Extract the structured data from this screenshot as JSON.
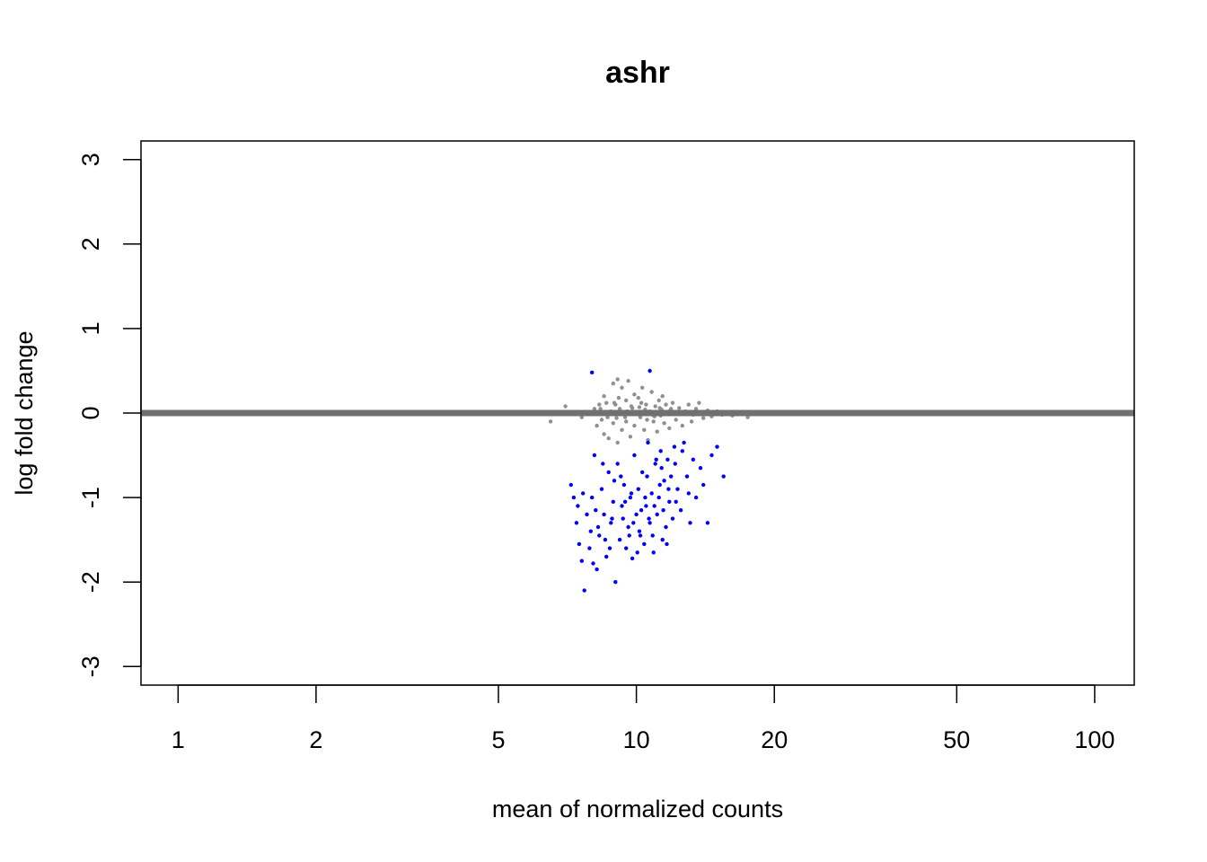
{
  "chart_data": {
    "type": "scatter",
    "title": "ashr",
    "xlabel": "mean of normalized counts",
    "ylabel": "log fold change",
    "x_scale": "log",
    "xlim": [
      0.83,
      122
    ],
    "ylim": [
      -3.22,
      3.22
    ],
    "x_ticks": [
      1,
      2,
      5,
      10,
      20,
      50,
      100
    ],
    "x_tick_labels": [
      "1",
      "2",
      "5",
      "10",
      "20",
      "50",
      "100"
    ],
    "y_ticks": [
      -3,
      -2,
      -1,
      0,
      1,
      2,
      3
    ],
    "y_tick_labels": [
      "-3",
      "-2",
      "-1",
      "0",
      "1",
      "2",
      "3"
    ],
    "grid": false,
    "colors": {
      "not_significant": "#909090",
      "significant": "#0000ff",
      "zero_line": "#707070"
    },
    "reference_line": {
      "y": 0
    },
    "series": [
      {
        "color": "#909090",
        "points": [
          [
            6.5,
            -0.1
          ],
          [
            7.0,
            0.08
          ],
          [
            7.6,
            -0.05
          ],
          [
            8.0,
            0.0
          ],
          [
            8.1,
            0.05
          ],
          [
            8.2,
            -0.15
          ],
          [
            8.3,
            0.1
          ],
          [
            8.4,
            -0.08
          ],
          [
            8.5,
            0.2
          ],
          [
            8.5,
            -0.25
          ],
          [
            8.6,
            0.12
          ],
          [
            8.7,
            -0.3
          ],
          [
            8.8,
            0.02
          ],
          [
            8.9,
            0.35
          ],
          [
            8.9,
            -0.12
          ],
          [
            9.0,
            0.1
          ],
          [
            9.1,
            0.4
          ],
          [
            9.1,
            -0.35
          ],
          [
            9.2,
            0.05
          ],
          [
            9.3,
            -0.2
          ],
          [
            9.3,
            0.3
          ],
          [
            9.4,
            0.0
          ],
          [
            9.5,
            0.15
          ],
          [
            9.5,
            -0.1
          ],
          [
            9.6,
            0.38
          ],
          [
            9.7,
            -0.28
          ],
          [
            9.8,
            0.06
          ],
          [
            9.9,
            0.22
          ],
          [
            9.9,
            -0.15
          ],
          [
            10.0,
            0.0
          ],
          [
            10.1,
            0.18
          ],
          [
            10.2,
            -0.05
          ],
          [
            10.3,
            0.3
          ],
          [
            10.4,
            -0.2
          ],
          [
            10.5,
            0.1
          ],
          [
            10.6,
            -0.32
          ],
          [
            10.7,
            0.02
          ],
          [
            10.8,
            0.25
          ],
          [
            10.9,
            -0.1
          ],
          [
            11.0,
            0.08
          ],
          [
            11.1,
            -0.22
          ],
          [
            11.2,
            0.15
          ],
          [
            11.3,
            -0.03
          ],
          [
            11.4,
            0.2
          ],
          [
            11.5,
            -0.12
          ],
          [
            11.6,
            0.1
          ],
          [
            11.7,
            0.0
          ],
          [
            11.8,
            -0.18
          ],
          [
            11.9,
            0.05
          ],
          [
            12.0,
            0.12
          ],
          [
            12.2,
            -0.08
          ],
          [
            12.4,
            0.06
          ],
          [
            12.6,
            -0.15
          ],
          [
            12.8,
            0.02
          ],
          [
            13.0,
            0.1
          ],
          [
            13.2,
            -0.1
          ],
          [
            13.5,
            0.05
          ],
          [
            13.7,
            0.12
          ],
          [
            14.0,
            -0.06
          ],
          [
            14.3,
            0.03
          ],
          [
            14.6,
            -0.04
          ],
          [
            15.0,
            0.02
          ],
          [
            15.4,
            -0.02
          ],
          [
            15.8,
            0.01
          ],
          [
            16.2,
            -0.03
          ],
          [
            16.8,
            -0.01
          ],
          [
            17.5,
            -0.05
          ],
          [
            8.95,
            0.12
          ],
          [
            9.15,
            0.18
          ],
          [
            9.45,
            -0.05
          ],
          [
            9.75,
            0.08
          ],
          [
            10.25,
            0.12
          ],
          [
            10.55,
            -0.08
          ],
          [
            10.95,
            -0.04
          ],
          [
            11.25,
            0.06
          ],
          [
            8.35,
            0.05
          ],
          [
            8.65,
            -0.05
          ],
          [
            9.05,
            -0.06
          ],
          [
            9.55,
            0.02
          ],
          [
            10.15,
            0.07
          ],
          [
            10.45,
            0.04
          ],
          [
            10.85,
            -0.02
          ],
          [
            11.35,
            0.04
          ],
          [
            11.85,
            0.03
          ],
          [
            12.5,
            0.0
          ],
          [
            13.3,
            -0.02
          ],
          [
            14.8,
            0.0
          ],
          [
            16.0,
            0.0
          ],
          [
            18.2,
            0.0
          ],
          [
            19.5,
            0.0
          ]
        ]
      },
      {
        "color": "#0000ff",
        "points": [
          [
            8.0,
            0.48
          ],
          [
            10.7,
            0.5
          ],
          [
            7.2,
            -0.85
          ],
          [
            7.3,
            -1.0
          ],
          [
            7.4,
            -1.3
          ],
          [
            7.5,
            -1.55
          ],
          [
            7.6,
            -1.75
          ],
          [
            7.7,
            -2.1
          ],
          [
            7.8,
            -1.2
          ],
          [
            7.9,
            -1.6
          ],
          [
            8.0,
            -1.0
          ],
          [
            8.05,
            -1.78
          ],
          [
            8.1,
            -0.5
          ],
          [
            8.2,
            -1.85
          ],
          [
            8.3,
            -1.45
          ],
          [
            8.4,
            -0.9
          ],
          [
            8.5,
            -1.2
          ],
          [
            8.6,
            -1.7
          ],
          [
            8.7,
            -0.7
          ],
          [
            8.8,
            -1.3
          ],
          [
            8.9,
            -1.05
          ],
          [
            9.0,
            -2.0
          ],
          [
            9.1,
            -0.6
          ],
          [
            9.2,
            -1.5
          ],
          [
            9.3,
            -1.1
          ],
          [
            9.4,
            -0.85
          ],
          [
            9.5,
            -1.6
          ],
          [
            9.6,
            -1.35
          ],
          [
            9.7,
            -1.0
          ],
          [
            9.8,
            -1.72
          ],
          [
            9.9,
            -0.5
          ],
          [
            10.0,
            -1.2
          ],
          [
            10.1,
            -0.9
          ],
          [
            10.2,
            -1.45
          ],
          [
            10.3,
            -0.7
          ],
          [
            10.4,
            -1.55
          ],
          [
            10.5,
            -1.1
          ],
          [
            10.6,
            -0.35
          ],
          [
            10.7,
            -1.3
          ],
          [
            10.8,
            -0.95
          ],
          [
            10.9,
            -1.65
          ],
          [
            11.0,
            -0.6
          ],
          [
            11.1,
            -1.2
          ],
          [
            11.2,
            -1.0
          ],
          [
            11.3,
            -0.45
          ],
          [
            11.4,
            -1.5
          ],
          [
            11.5,
            -0.8
          ],
          [
            11.6,
            -1.35
          ],
          [
            11.7,
            -0.55
          ],
          [
            11.8,
            -1.05
          ],
          [
            11.9,
            -0.75
          ],
          [
            12.0,
            -1.25
          ],
          [
            12.1,
            -0.4
          ],
          [
            12.3,
            -0.9
          ],
          [
            12.5,
            -1.15
          ],
          [
            12.7,
            -0.35
          ],
          [
            12.9,
            -0.75
          ],
          [
            13.1,
            -1.3
          ],
          [
            13.3,
            -0.55
          ],
          [
            13.5,
            -1.0
          ],
          [
            13.8,
            -0.65
          ],
          [
            14.0,
            -0.85
          ],
          [
            14.3,
            -1.3
          ],
          [
            14.6,
            -0.5
          ],
          [
            15.0,
            -0.4
          ],
          [
            15.5,
            -0.75
          ],
          [
            7.65,
            -0.95
          ],
          [
            8.15,
            -1.15
          ],
          [
            8.55,
            -1.5
          ],
          [
            8.95,
            -0.8
          ],
          [
            9.35,
            -1.25
          ],
          [
            9.75,
            -0.95
          ],
          [
            10.15,
            -1.4
          ],
          [
            10.55,
            -0.75
          ],
          [
            10.95,
            -1.1
          ],
          [
            11.35,
            -0.65
          ],
          [
            11.75,
            -0.9
          ],
          [
            12.15,
            -0.6
          ],
          [
            12.6,
            -0.45
          ],
          [
            13.0,
            -0.95
          ],
          [
            8.25,
            -1.35
          ],
          [
            8.75,
            -1.6
          ],
          [
            9.25,
            -0.75
          ],
          [
            9.65,
            -1.45
          ],
          [
            10.05,
            -1.65
          ],
          [
            10.45,
            -1.0
          ],
          [
            10.85,
            -1.45
          ],
          [
            11.25,
            -0.85
          ],
          [
            11.65,
            -1.55
          ],
          [
            12.2,
            -1.05
          ],
          [
            7.45,
            -1.1
          ],
          [
            7.95,
            -1.4
          ],
          [
            8.45,
            -0.6
          ],
          [
            8.85,
            -1.25
          ],
          [
            9.45,
            -1.05
          ],
          [
            9.85,
            -1.3
          ],
          [
            10.25,
            -1.15
          ],
          [
            10.65,
            -1.25
          ],
          [
            11.05,
            -0.55
          ],
          [
            11.45,
            -1.15
          ]
        ]
      }
    ]
  }
}
